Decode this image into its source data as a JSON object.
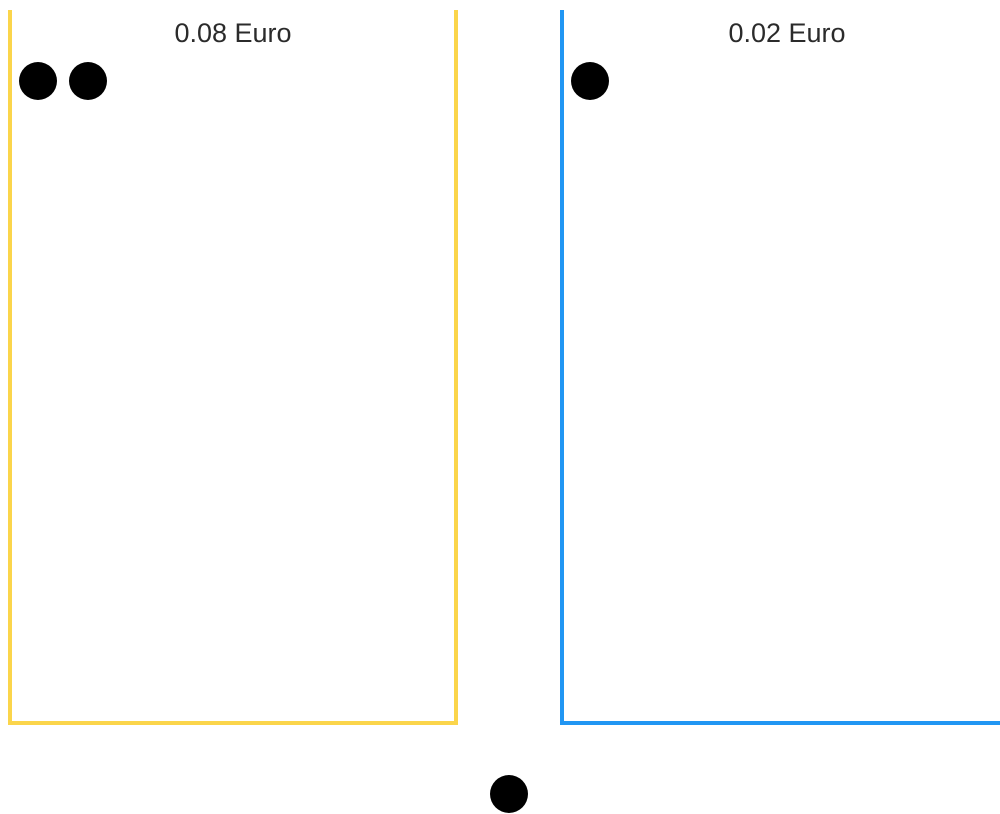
{
  "bins": [
    {
      "label": "0.08 Euro"
    },
    {
      "label": "0.02 Euro"
    }
  ]
}
